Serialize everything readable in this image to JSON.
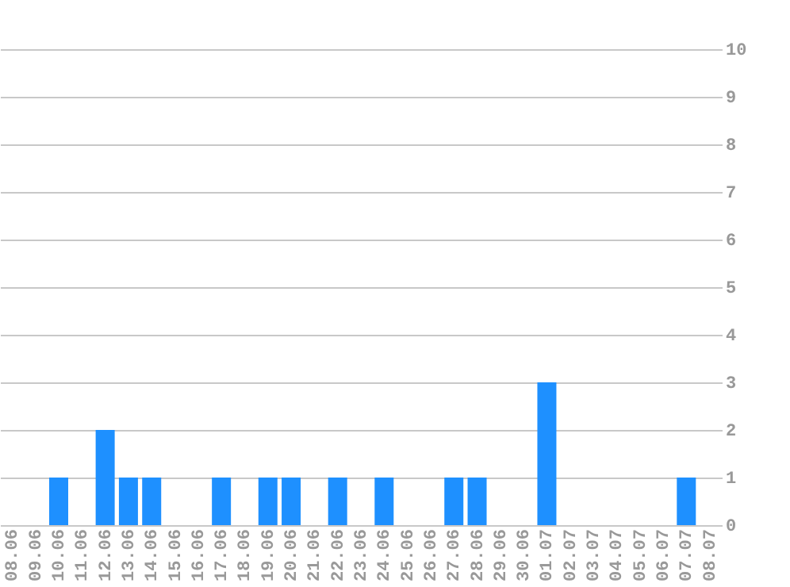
{
  "chart_data": {
    "type": "bar",
    "categories": [
      "08.06",
      "09.06",
      "10.06",
      "11.06",
      "12.06",
      "13.06",
      "14.06",
      "15.06",
      "16.06",
      "17.06",
      "18.06",
      "19.06",
      "20.06",
      "21.06",
      "22.06",
      "23.06",
      "24.06",
      "25.06",
      "26.06",
      "27.06",
      "28.06",
      "29.06",
      "30.06",
      "01.07",
      "02.07",
      "03.07",
      "04.07",
      "05.07",
      "06.07",
      "07.07",
      "08.07"
    ],
    "values": [
      0,
      0,
      1,
      0,
      2,
      1,
      1,
      0,
      0,
      1,
      0,
      1,
      1,
      0,
      1,
      0,
      1,
      0,
      0,
      1,
      1,
      0,
      0,
      3,
      0,
      0,
      0,
      0,
      0,
      1,
      0
    ],
    "color": "#1e90ff",
    "ylim": [
      0,
      10
    ],
    "yticks": [
      0,
      1,
      2,
      3,
      4,
      5,
      6,
      7,
      8,
      9,
      10
    ],
    "grid": "y"
  }
}
